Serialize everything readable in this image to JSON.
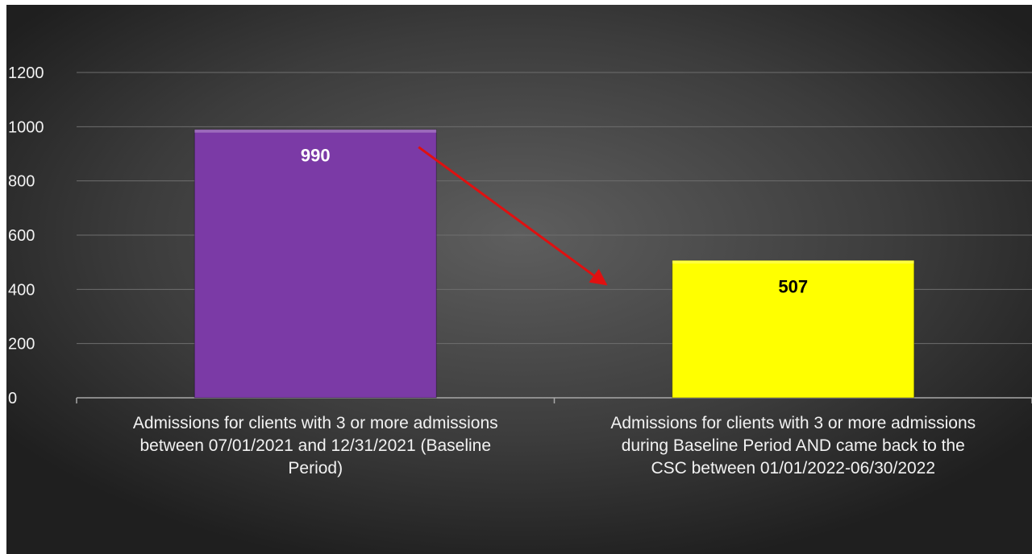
{
  "chart_data": {
    "type": "bar",
    "categories": [
      [
        "Admissions for clients with 3 or more admissions",
        "between 07/01/2021 and 12/31/2021 (Baseline",
        "Period)"
      ],
      [
        "Admissions for clients with 3 or more admissions",
        "during Baseline Period AND came back to the",
        "CSC between 01/01/2022-06/30/2022"
      ]
    ],
    "values": [
      990,
      507
    ],
    "data_labels": [
      "990",
      "507"
    ],
    "bar_colors": [
      "#7b3aa6",
      "#ffff00"
    ],
    "data_label_colors": [
      "#ffffff",
      "#000000"
    ],
    "ylim": [
      0,
      1200
    ],
    "yticks": [
      0,
      200,
      400,
      600,
      800,
      1000,
      1200
    ],
    "grid": true,
    "legend": "none",
    "annotation": "red arrow pointing from the first bar down toward the second bar",
    "background": "dark radial gradient",
    "arrow_color": "#e01010"
  }
}
